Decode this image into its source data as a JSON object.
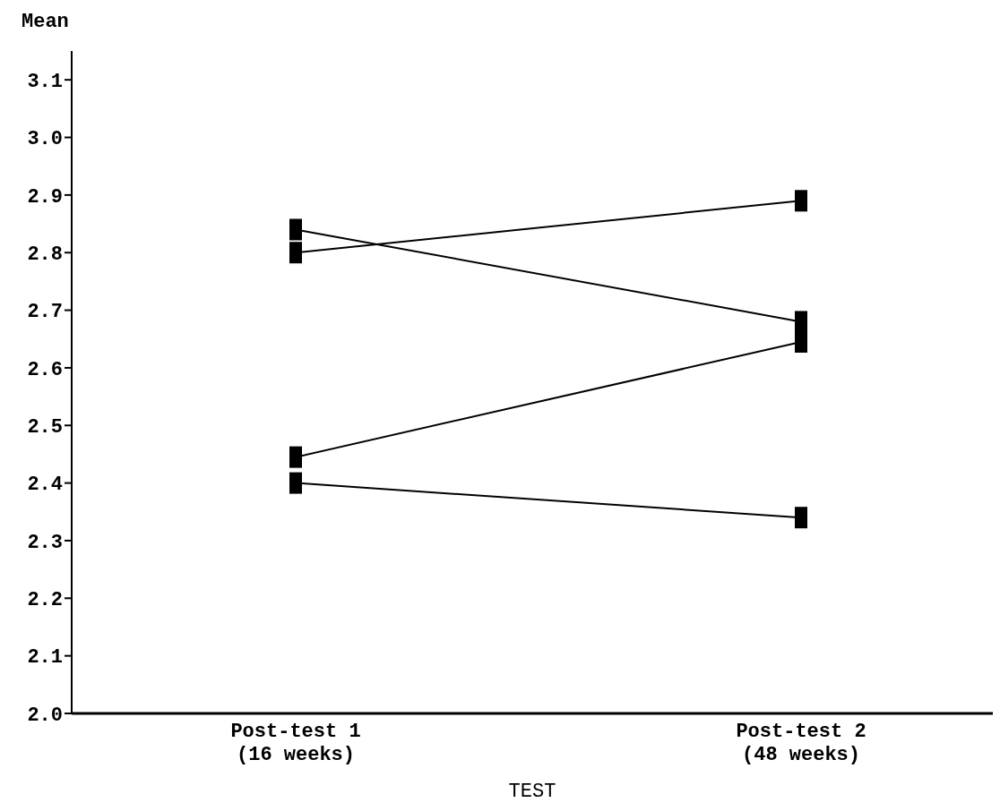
{
  "chart_data": {
    "type": "line",
    "ylabel": "Mean",
    "xlabel": "TEST",
    "categories": [
      "Post-test 1\n(16 weeks)",
      "Post-test 2\n(48 weeks)"
    ],
    "series": [
      {
        "color": "#000000",
        "values": [
          2.84,
          2.68
        ]
      },
      {
        "color": "#000000",
        "values": [
          2.8,
          2.89
        ]
      },
      {
        "color": "#000000",
        "values": [
          2.445,
          2.645
        ]
      },
      {
        "color": "#000000",
        "values": [
          2.4,
          2.34
        ]
      }
    ],
    "ylim": [
      2.0,
      3.15
    ],
    "yticks": [
      {
        "value": 2,
        "label": "2.0"
      },
      2.1,
      2.2,
      2.3,
      2.4,
      2.5,
      2.6,
      2.7,
      2.8,
      2.9,
      {
        "value": 3,
        "label": "3.0"
      },
      3.1
    ],
    "grid": false,
    "legend": false,
    "marker": "square",
    "line_style": "solid"
  }
}
